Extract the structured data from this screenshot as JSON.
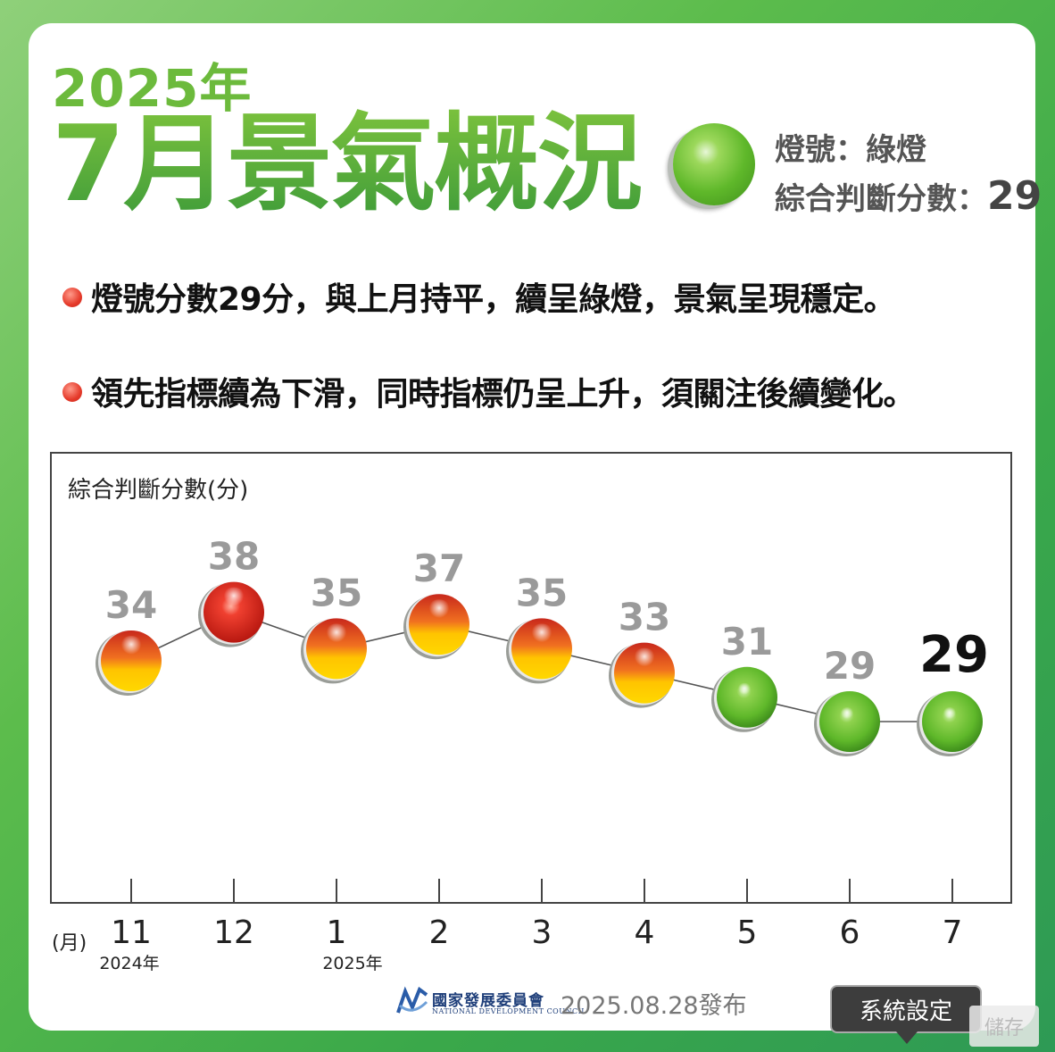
{
  "header": {
    "year": "2025年",
    "headline": "7月景氣概況",
    "light_label": "燈號：綠燈",
    "score_label": "綜合判斷分數：",
    "score_value": "29"
  },
  "bullets": [
    "燈號分數29分，與上月持平，續呈綠燈，景氣呈現穩定。",
    "領先指標續為下滑，同時指標仍呈上升，須關注後續變化。"
  ],
  "chart_data": {
    "type": "line",
    "ylabel": "綜合判斷分數(分)",
    "xlabel": "(月)",
    "categories": [
      "11",
      "12",
      "1",
      "2",
      "3",
      "4",
      "5",
      "6",
      "7"
    ],
    "year_notes": [
      "2024年",
      "",
      "2025年",
      "",
      "",
      "",
      "",
      "",
      ""
    ],
    "values": [
      34,
      38,
      35,
      37,
      35,
      33,
      31,
      29,
      29
    ],
    "light_colors": [
      "yellow-red",
      "red",
      "yellow-red",
      "yellow-red",
      "yellow-red",
      "yellow-red",
      "green",
      "green",
      "green"
    ],
    "highlight_index": 8,
    "colors": {
      "red": "#e8261e",
      "yellow_red_top": "#d8301c",
      "yellow_red_bottom": "#ffd000",
      "green": "#5fb82a",
      "label_gray": "#9a9a9a",
      "label_highlight": "#111111"
    }
  },
  "footer": {
    "org_name_cn": "國家發展委員會",
    "org_name_en": "NATIONAL DEVELOPMENT COUNCIL",
    "release": "2025.08.28發布"
  },
  "overlay": {
    "tooltip": "系統設定",
    "save_button": "儲存"
  }
}
